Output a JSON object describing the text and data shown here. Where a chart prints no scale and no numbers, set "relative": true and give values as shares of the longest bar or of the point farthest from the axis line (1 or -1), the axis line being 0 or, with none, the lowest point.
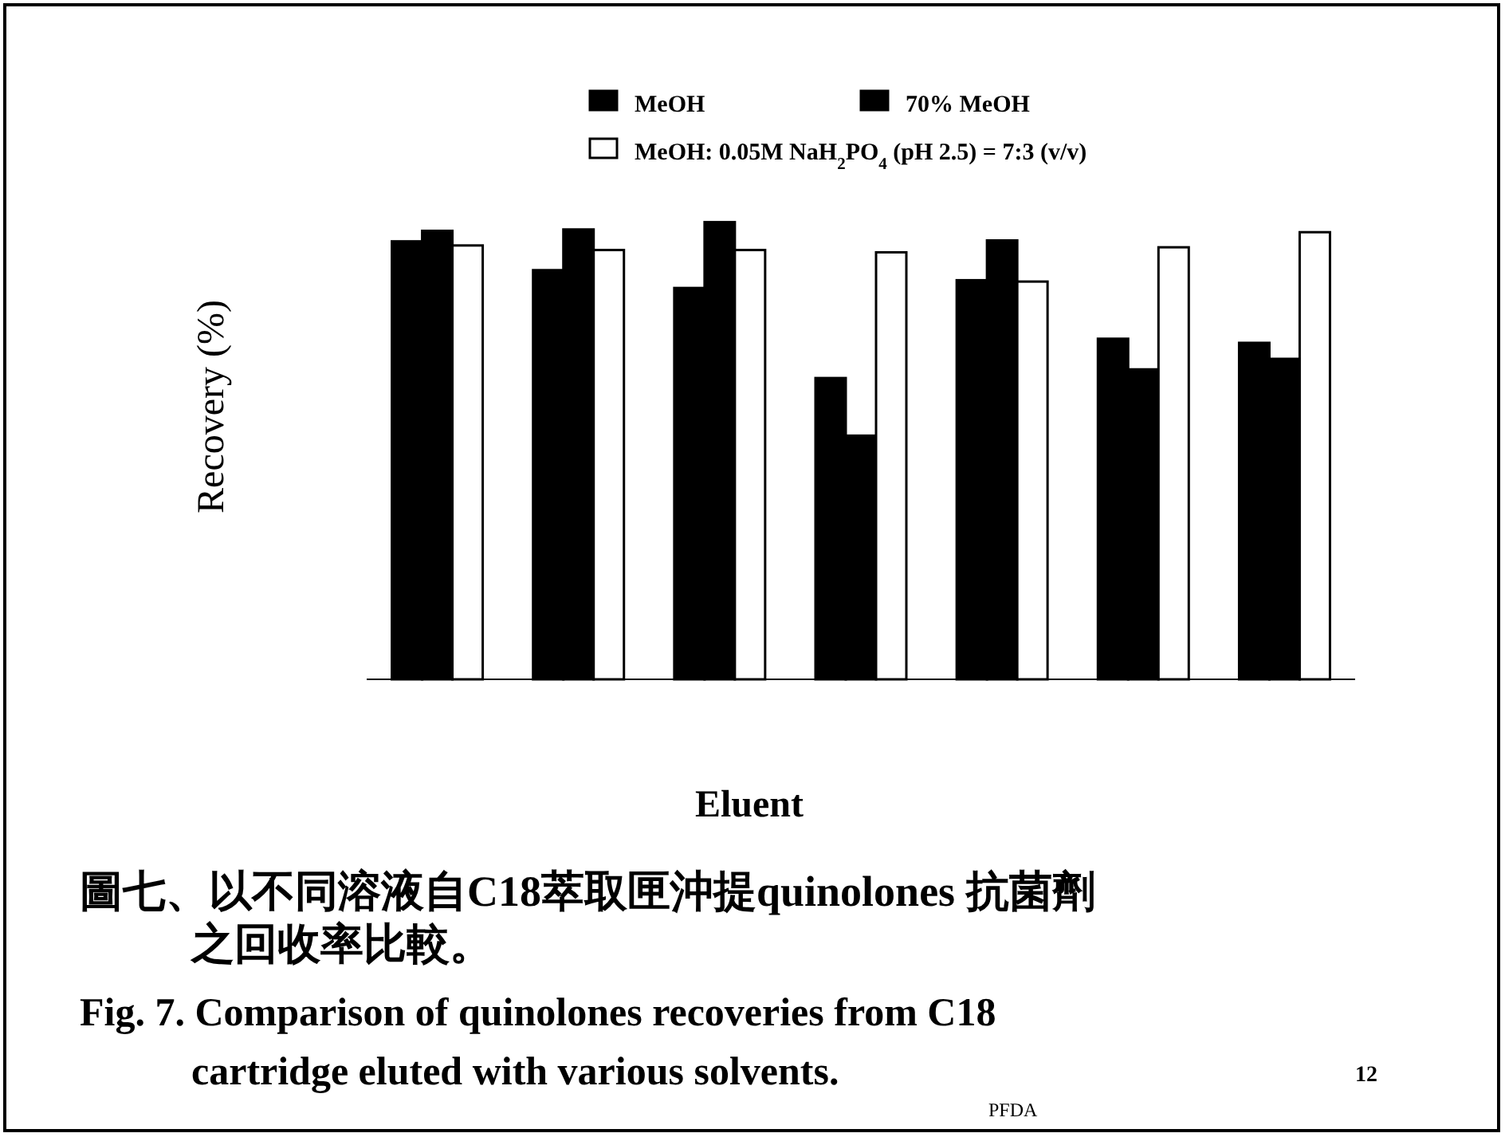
{
  "chart_data": {
    "type": "bar",
    "relative": true,
    "ylabel": "Recovery (%)",
    "xlabel": "Eluent",
    "legend": "top",
    "categories": [
      null,
      null,
      null,
      null,
      null,
      null,
      null
    ],
    "series": [
      {
        "name": "MeOH",
        "color": "#000000",
        "values": [
          0.958,
          0.895,
          0.856,
          0.659,
          0.873,
          0.745,
          0.736
        ]
      },
      {
        "name": "70% MeOH",
        "color": "#000000",
        "values": [
          0.981,
          0.984,
          1,
          0.533,
          0.96,
          0.678,
          0.701
        ]
      },
      {
        "name": "MeOH: 0.05M NaH$_{2}$PO$_{4}$ (pH 2.5) = 7:3 (v/v)",
        "color": "#ffffff",
        "values": [
          0.949,
          0.939,
          0.939,
          0.934,
          0.87,
          0.945,
          0.978
        ]
      }
    ],
    "annotations": [
      "圖七、以不同溶液自C18萃取匣沖提quinolones 抗菌劑之回收率比較。",
      "Fig. 7. Comparison of quinolones recoveries from C18 cartridge eluted with various solvents.",
      "PFDA",
      "12"
    ]
  }
}
